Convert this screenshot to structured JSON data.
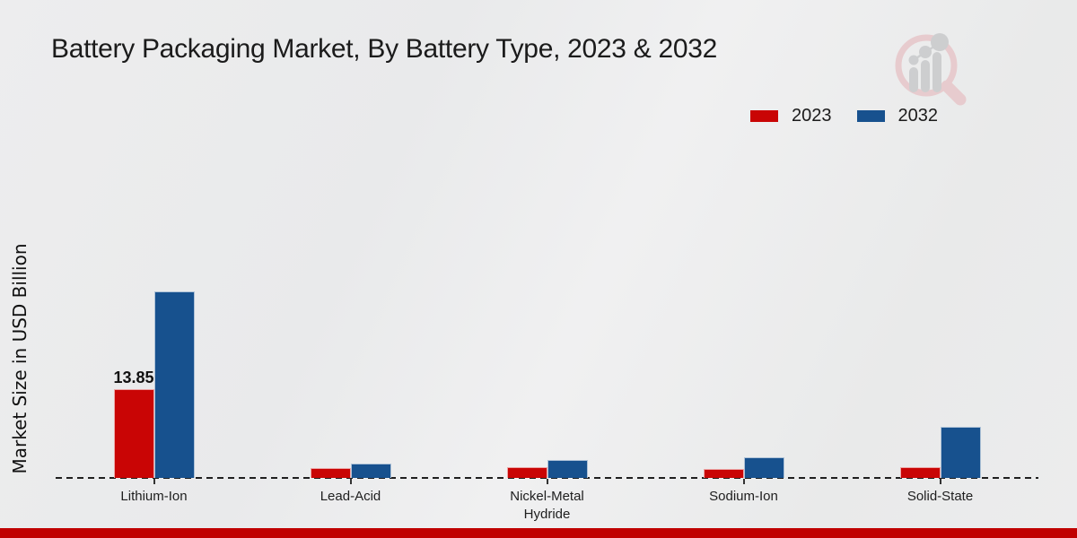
{
  "title": "Battery Packaging Market, By Battery Type, 2023 & 2032",
  "y_axis_label": "Market Size in USD Billion",
  "legend": [
    {
      "label": "2023",
      "color": "#c90505"
    },
    {
      "label": "2032",
      "color": "#17518e"
    }
  ],
  "watermark": {
    "name": "magnifier-bar-chart-logo",
    "ring_color": "#e7c6c9",
    "bars_color": "#c8c9cb"
  },
  "footer": {
    "bar_color": "#c00000"
  },
  "chart_data": {
    "type": "bar",
    "title": "Battery Packaging Market, By Battery Type, 2023 & 2032",
    "xlabel": "",
    "ylabel": "Market Size in USD Billion",
    "categories": [
      "Lithium-Ion",
      "Lead-Acid",
      "Nickel-Metal Hydride",
      "Sodium-Ion",
      "Solid-State"
    ],
    "series": [
      {
        "name": "2023",
        "color": "#c90505",
        "values": [
          13.85,
          1.55,
          1.7,
          1.4,
          1.75
        ]
      },
      {
        "name": "2032",
        "color": "#17518e",
        "values": [
          29.1,
          2.25,
          2.8,
          3.2,
          8.0
        ]
      }
    ],
    "data_labels": [
      {
        "category_index": 0,
        "series": "2023",
        "text": "13.85"
      }
    ],
    "ylim": [
      0,
      32
    ],
    "grid": false,
    "legend_position": "top-right",
    "baseline_style": "dashed",
    "units": "USD Billion"
  }
}
